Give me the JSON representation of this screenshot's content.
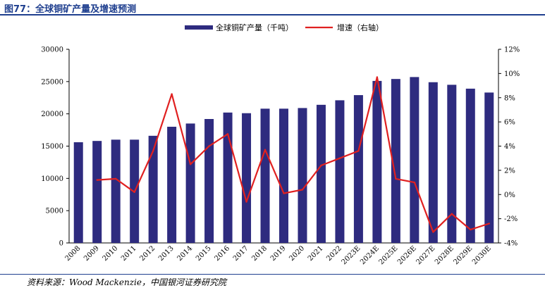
{
  "figure_title": "图77：全球铜矿产量及增速预测",
  "source": "资料来源：Wood Mackenzie，中国银河证券研究院",
  "colors": {
    "bar": "#2e2b7f",
    "line": "#e02020",
    "title": "#1f3f8f"
  },
  "chart_data": {
    "type": "bar",
    "categories": [
      "2008",
      "2009",
      "2010",
      "2011",
      "2012",
      "2013",
      "2014",
      "2015",
      "2016",
      "2017",
      "2018",
      "2019",
      "2020",
      "2021",
      "2022",
      "2023E",
      "2024E",
      "2025E",
      "2026E",
      "2027E",
      "2028E",
      "2029E",
      "2030E"
    ],
    "series": [
      {
        "name": "全球铜矿产量（千吨）",
        "type": "bar",
        "axis": "left",
        "values": [
          15600,
          15800,
          16000,
          16000,
          16600,
          18000,
          18500,
          19200,
          20200,
          20100,
          20800,
          20800,
          20900,
          21400,
          22100,
          22900,
          25100,
          25400,
          25700,
          24900,
          24500,
          23900,
          23300
        ]
      },
      {
        "name": "增速（右轴）",
        "type": "line",
        "axis": "right",
        "values": [
          null,
          1.2,
          1.3,
          0.2,
          3.6,
          8.3,
          2.5,
          4.0,
          5.0,
          -0.6,
          3.7,
          0.1,
          0.4,
          2.4,
          3.0,
          3.6,
          9.7,
          1.3,
          1.0,
          -3.1,
          -1.6,
          -2.9,
          -2.4
        ]
      }
    ],
    "yaxis_left": {
      "min": 0,
      "max": 30000,
      "ticks": [
        0,
        5000,
        10000,
        15000,
        20000,
        25000,
        30000
      ]
    },
    "yaxis_right": {
      "min": -4,
      "max": 12,
      "ticks": [
        -4,
        -2,
        0,
        2,
        4,
        6,
        8,
        10,
        12
      ],
      "tick_labels": [
        "-4%",
        "-2%",
        "0%",
        "2%",
        "4%",
        "6%",
        "8%",
        "10%",
        "12%"
      ]
    },
    "legend": [
      "全球铜矿产量（千吨）",
      "增速（右轴）"
    ],
    "legend_position": "top-center",
    "grid": false
  }
}
